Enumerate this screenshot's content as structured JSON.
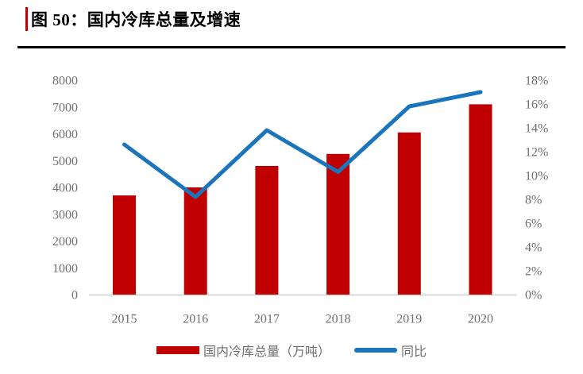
{
  "header": {
    "title": "图 50：国内冷库总量及增速"
  },
  "colors": {
    "bar": "#C00000",
    "line": "#1B75BC",
    "axis_line": "#D9D9D9",
    "tick_text": "#6F6F6F",
    "accent": "#C00000"
  },
  "chart_data": {
    "type": "bar",
    "subtype": "bar+line dual axis",
    "title": "图 50：国内冷库总量及增速",
    "categories": [
      "2015",
      "2016",
      "2017",
      "2018",
      "2019",
      "2020"
    ],
    "series": [
      {
        "name": "国内冷库总量（万吨）",
        "type": "bar",
        "axis": "left",
        "color": "#C00000",
        "values": [
          3700,
          4000,
          4800,
          5250,
          6050,
          7100
        ]
      },
      {
        "name": "同比",
        "type": "line",
        "axis": "right",
        "color": "#1B75BC",
        "values": [
          12.6,
          8.2,
          13.8,
          10.3,
          15.8,
          17.0
        ]
      }
    ],
    "left_axis": {
      "min": 0,
      "max": 8000,
      "step": 1000,
      "suffix": ""
    },
    "right_axis": {
      "min": 0,
      "max": 18,
      "step": 2,
      "suffix": "%"
    },
    "grid": false,
    "legend_position": "bottom-center",
    "xlabel": "",
    "ylabel_left": "万吨",
    "ylabel_right": "%"
  }
}
